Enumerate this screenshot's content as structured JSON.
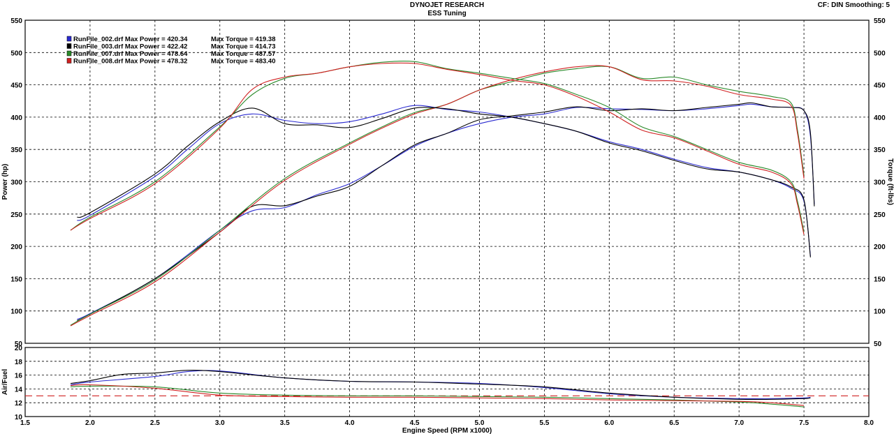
{
  "header": {
    "title": "DYNOJET RESEARCH",
    "subtitle": "ESS Tuning",
    "cf_label": "CF: DIN  Smoothing: 5"
  },
  "chart_data": [
    {
      "type": "line",
      "xlim": [
        1.5,
        8.0
      ],
      "x_ticks": [
        "1.5",
        "2.0",
        "2.5",
        "3.0",
        "3.5",
        "4.0",
        "4.5",
        "5.0",
        "5.5",
        "6.0",
        "6.5",
        "7.0",
        "7.5",
        "8.0"
      ],
      "ylim": [
        50,
        550
      ],
      "y_ticks": [
        "50",
        "100",
        "150",
        "200",
        "250",
        "300",
        "350",
        "400",
        "450",
        "500",
        "550"
      ],
      "ylabel_left": "Power (hp)",
      "ylabel_right": "Torque (ft-lbs)",
      "grid": true,
      "legend_position": "top-left",
      "legend": [
        {
          "file": "RunFile_002.drf",
          "max_power": "Max Power = 420.34",
          "max_torque": "Max Torque = 419.38",
          "color": "#2a2ad0"
        },
        {
          "file": "RunFile_003.drf",
          "max_power": "Max Power = 422.42",
          "max_torque": "Max Torque = 414.73",
          "color": "#000000"
        },
        {
          "file": "RunFile_007.drf",
          "max_power": "Max Power = 478.64",
          "max_torque": "Max Torque = 487.57",
          "color": "#2a8a2a"
        },
        {
          "file": "RunFile_008.drf",
          "max_power": "Max Power = 478.32",
          "max_torque": "Max Torque = 483.40",
          "color": "#d02020"
        }
      ],
      "series": [
        {
          "name": "RunFile_002.drf",
          "measure": "power",
          "color": "#2a2ad0",
          "x": [
            1.9,
            2.0,
            2.5,
            3.0,
            3.25,
            3.5,
            3.75,
            4.0,
            4.25,
            4.5,
            4.75,
            5.0,
            5.25,
            5.5,
            5.75,
            6.0,
            6.25,
            6.5,
            6.75,
            7.0,
            7.1,
            7.25,
            7.4,
            7.5,
            7.55,
            7.58
          ],
          "y": [
            87,
            96,
            150,
            225,
            255,
            260,
            280,
            297,
            325,
            355,
            375,
            390,
            400,
            405,
            415,
            413,
            412,
            410,
            413,
            418,
            420,
            416,
            415,
            410,
            370,
            265
          ]
        },
        {
          "name": "RunFile_003.drf",
          "measure": "power",
          "color": "#000000",
          "x": [
            1.9,
            2.0,
            2.5,
            3.0,
            3.25,
            3.5,
            3.75,
            4.0,
            4.25,
            4.5,
            4.75,
            5.0,
            5.25,
            5.5,
            5.75,
            6.0,
            6.25,
            6.5,
            6.75,
            7.0,
            7.1,
            7.25,
            7.4,
            7.5,
            7.55,
            7.58
          ],
          "y": [
            85,
            95,
            150,
            222,
            262,
            263,
            278,
            293,
            325,
            357,
            375,
            396,
            402,
            408,
            416,
            410,
            413,
            410,
            415,
            420,
            422,
            416,
            415,
            410,
            375,
            262
          ]
        },
        {
          "name": "RunFile_007.drf",
          "measure": "power",
          "color": "#2a8a2a",
          "x": [
            1.85,
            2.0,
            2.5,
            3.0,
            3.5,
            4.0,
            4.25,
            4.5,
            4.75,
            5.0,
            5.25,
            5.5,
            5.75,
            6.0,
            6.25,
            6.5,
            6.75,
            7.0,
            7.25,
            7.4,
            7.45,
            7.5
          ],
          "y": [
            78,
            95,
            148,
            225,
            305,
            360,
            385,
            407,
            420,
            442,
            455,
            468,
            475,
            478,
            460,
            462,
            450,
            440,
            432,
            422,
            380,
            310
          ]
        },
        {
          "name": "RunFile_008.drf",
          "measure": "power",
          "color": "#d02020",
          "x": [
            1.85,
            2.0,
            2.5,
            3.0,
            3.5,
            4.0,
            4.25,
            4.5,
            4.75,
            5.0,
            5.25,
            5.5,
            5.75,
            6.0,
            6.25,
            6.5,
            6.75,
            7.0,
            7.25,
            7.4,
            7.45,
            7.5
          ],
          "y": [
            77,
            93,
            145,
            222,
            302,
            358,
            383,
            405,
            420,
            442,
            458,
            470,
            478,
            478,
            458,
            456,
            448,
            435,
            428,
            418,
            375,
            305
          ]
        },
        {
          "name": "RunFile_002.drf",
          "measure": "torque",
          "color": "#2a2ad0",
          "x": [
            1.9,
            2.0,
            2.5,
            2.75,
            3.0,
            3.25,
            3.5,
            3.75,
            4.0,
            4.25,
            4.5,
            4.75,
            5.0,
            5.25,
            5.5,
            5.75,
            6.0,
            6.25,
            6.5,
            6.75,
            7.0,
            7.25,
            7.4,
            7.5,
            7.55
          ],
          "y": [
            240,
            248,
            308,
            350,
            390,
            405,
            395,
            390,
            393,
            405,
            418,
            412,
            408,
            400,
            390,
            378,
            362,
            350,
            335,
            322,
            315,
            303,
            290,
            270,
            185
          ]
        },
        {
          "name": "RunFile_003.drf",
          "measure": "torque",
          "color": "#000000",
          "x": [
            1.9,
            2.0,
            2.5,
            2.75,
            3.0,
            3.25,
            3.5,
            3.75,
            4.0,
            4.25,
            4.5,
            4.75,
            5.0,
            5.25,
            5.5,
            5.75,
            6.0,
            6.25,
            6.5,
            6.75,
            7.0,
            7.25,
            7.4,
            7.5,
            7.55
          ],
          "y": [
            245,
            252,
            312,
            355,
            393,
            414,
            390,
            388,
            384,
            398,
            414,
            413,
            405,
            400,
            390,
            378,
            360,
            348,
            333,
            320,
            315,
            303,
            292,
            272,
            183
          ]
        },
        {
          "name": "RunFile_007.drf",
          "measure": "torque",
          "color": "#2a8a2a",
          "x": [
            1.85,
            2.0,
            2.5,
            3.0,
            3.25,
            3.5,
            3.75,
            4.0,
            4.25,
            4.5,
            4.75,
            5.0,
            5.25,
            5.5,
            5.75,
            6.0,
            6.25,
            6.5,
            6.75,
            7.0,
            7.25,
            7.4,
            7.45,
            7.5
          ],
          "y": [
            225,
            245,
            300,
            385,
            435,
            460,
            468,
            478,
            485,
            486,
            475,
            468,
            460,
            452,
            435,
            415,
            385,
            370,
            350,
            330,
            318,
            300,
            270,
            222
          ]
        },
        {
          "name": "RunFile_008.drf",
          "measure": "torque",
          "color": "#d02020",
          "x": [
            1.85,
            2.0,
            2.5,
            3.0,
            3.25,
            3.5,
            3.75,
            4.0,
            4.25,
            4.5,
            4.75,
            5.0,
            5.25,
            5.5,
            5.75,
            6.0,
            6.25,
            6.5,
            6.75,
            7.0,
            7.25,
            7.4,
            7.45,
            7.5
          ],
          "y": [
            225,
            243,
            297,
            383,
            443,
            462,
            468,
            478,
            483,
            483,
            474,
            466,
            457,
            450,
            432,
            408,
            380,
            368,
            348,
            327,
            315,
            297,
            265,
            218
          ]
        }
      ]
    },
    {
      "type": "line",
      "xlim": [
        1.5,
        8.0
      ],
      "ylim": [
        10,
        20
      ],
      "y_ticks": [
        "10",
        "12",
        "14",
        "16",
        "18",
        "20"
      ],
      "xlabel": "Engine Speed (RPM x1000)",
      "ylabel": "Air/Fuel",
      "grid": true,
      "reference_line": {
        "y": 13.0,
        "color": "#d02020",
        "style": "dashed"
      },
      "series": [
        {
          "name": "RunFile_002.drf",
          "color": "#2a2ad0",
          "x": [
            1.85,
            2.0,
            2.5,
            2.75,
            3.0,
            3.5,
            4.0,
            4.5,
            5.0,
            5.5,
            6.0,
            6.5,
            7.0,
            7.25,
            7.5,
            7.55
          ],
          "y": [
            14.6,
            15.0,
            15.8,
            16.5,
            16.6,
            15.6,
            15.1,
            15.0,
            14.8,
            14.2,
            13.3,
            12.8,
            12.6,
            12.6,
            12.7,
            12.8
          ]
        },
        {
          "name": "RunFile_003.drf",
          "color": "#000000",
          "x": [
            1.85,
            2.0,
            2.25,
            2.5,
            2.75,
            3.0,
            3.5,
            4.0,
            4.5,
            5.0,
            5.5,
            6.0,
            6.5,
            7.0,
            7.25,
            7.5,
            7.55
          ],
          "y": [
            14.8,
            15.2,
            16.1,
            16.3,
            16.7,
            16.5,
            15.6,
            15.1,
            15.0,
            14.7,
            14.3,
            13.4,
            12.8,
            12.5,
            12.5,
            12.6,
            12.7
          ]
        },
        {
          "name": "RunFile_007.drf",
          "color": "#2a8a2a",
          "x": [
            1.85,
            2.0,
            2.5,
            3.0,
            3.5,
            4.0,
            4.5,
            5.0,
            5.5,
            6.0,
            6.5,
            7.0,
            7.25,
            7.5
          ],
          "y": [
            14.3,
            14.4,
            14.3,
            13.4,
            13.1,
            13.0,
            13.0,
            12.9,
            12.8,
            12.6,
            12.4,
            12.1,
            11.8,
            11.4
          ]
        },
        {
          "name": "RunFile_008.drf",
          "color": "#d02020",
          "x": [
            1.85,
            2.0,
            2.5,
            3.0,
            3.5,
            4.0,
            4.5,
            5.0,
            5.5,
            6.0,
            6.5,
            7.0,
            7.25,
            7.5
          ],
          "y": [
            14.5,
            14.6,
            14.1,
            13.1,
            12.9,
            12.8,
            12.8,
            12.7,
            12.6,
            12.4,
            12.3,
            12.2,
            12.0,
            11.6
          ]
        }
      ]
    }
  ]
}
